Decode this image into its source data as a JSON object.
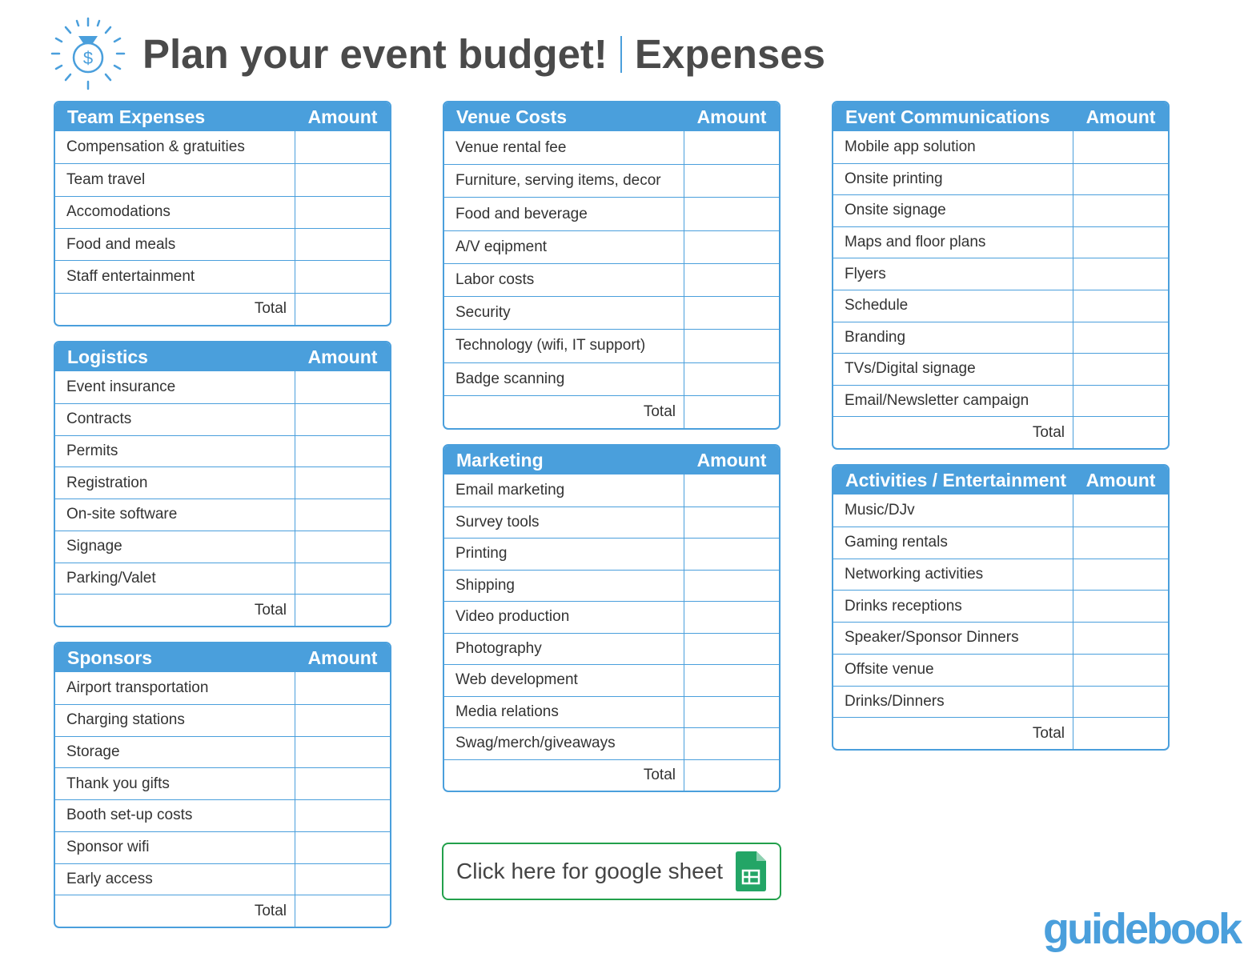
{
  "header": {
    "title": "Plan your event budget!",
    "subtitle": "Expenses"
  },
  "tables": [
    {
      "title": "Team Expenses",
      "amount_label": "Amount",
      "rows": [
        "Compensation & gratuities",
        "Team travel",
        "Accomodations",
        "Food and meals",
        "Staff entertainment"
      ],
      "total_label": "Total"
    },
    {
      "title": "Logistics",
      "amount_label": "Amount",
      "rows": [
        "Event insurance",
        "Contracts",
        "Permits",
        "Registration",
        "On-site software",
        "Signage",
        "Parking/Valet"
      ],
      "total_label": "Total"
    },
    {
      "title": "Sponsors",
      "amount_label": "Amount",
      "rows": [
        "Airport transportation",
        "Charging stations",
        "Storage",
        "Thank you gifts",
        "Booth set-up costs",
        "Sponsor wifi",
        "Early access"
      ],
      "total_label": "Total"
    },
    {
      "title": "Venue Costs",
      "amount_label": "Amount",
      "rows": [
        "Venue rental fee",
        "Furniture, serving items, decor",
        "Food and beverage",
        "A/V eqipment",
        "Labor costs",
        "Security",
        "Technology (wifi, IT support)",
        "Badge scanning"
      ],
      "total_label": "Total"
    },
    {
      "title": "Marketing",
      "amount_label": "Amount",
      "rows": [
        "Email marketing",
        "Survey tools",
        "Printing",
        "Shipping",
        "Video production",
        "Photography",
        "Web development",
        "Media relations",
        "Swag/merch/giveaways"
      ],
      "total_label": "Total"
    },
    {
      "title": "Event Communications",
      "amount_label": "Amount",
      "rows": [
        "Mobile app solution",
        "Onsite printing",
        "Onsite signage",
        "Maps and floor plans",
        "Flyers",
        "Schedule",
        "Branding",
        "TVs/Digital signage",
        "Email/Newsletter campaign"
      ],
      "total_label": "Total"
    },
    {
      "title": "Activities / Entertainment",
      "amount_label": "Amount",
      "rows": [
        "Music/DJv",
        "Gaming rentals",
        "Networking activities",
        "Drinks receptions",
        "Speaker/Sponsor Dinners",
        "Offsite venue",
        "Drinks/Dinners"
      ],
      "total_label": "Total"
    }
  ],
  "button": {
    "label": "Click here for google sheet"
  },
  "logo": "guidebook"
}
